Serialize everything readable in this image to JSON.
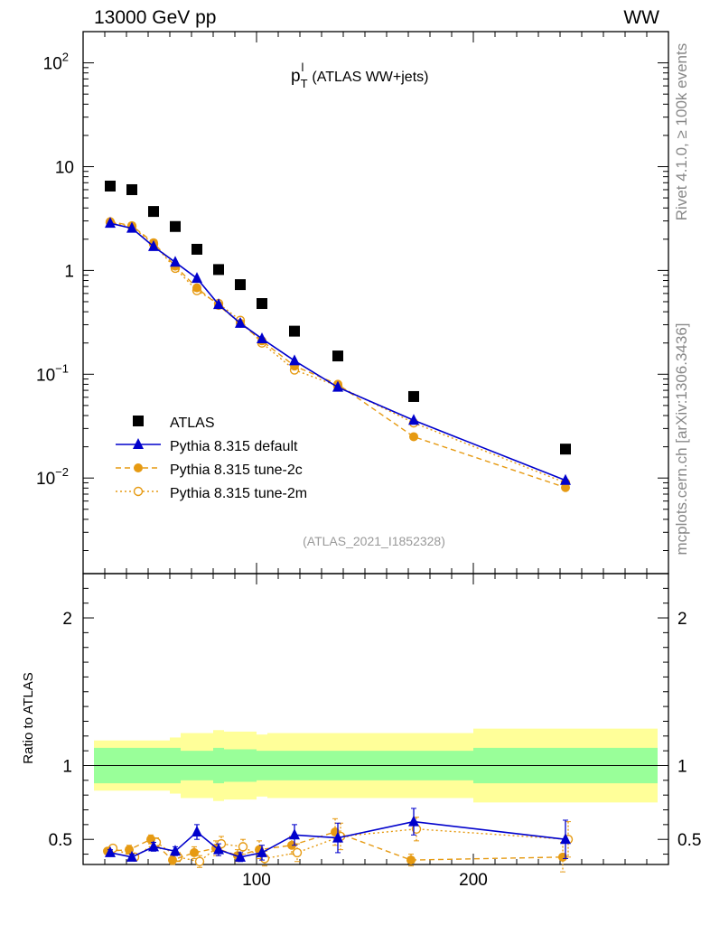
{
  "header": {
    "left": "13000 GeV pp",
    "right": "WW"
  },
  "side": {
    "rivet": "Rivet 4.1.0, ≥ 100k events",
    "mcplots": "mcplots.cern.ch [arXiv:1306.3436]"
  },
  "chart_data": {
    "type": "scatter",
    "title": "p_T^l (ATLAS WW+jets)",
    "title_main": "p",
    "title_sub": "T",
    "title_sup": "l",
    "title_rest": "(ATLAS WW+jets)",
    "analysis": "(ATLAS_2021_I1852328)",
    "xlim": [
      20,
      290
    ],
    "ylim": [
      0.0012,
      200
    ],
    "yscale": "log",
    "yticks": [
      {
        "base": "10",
        "exp": "2",
        "value": 100
      },
      {
        "base": "10",
        "exp": "",
        "value": 10
      },
      {
        "base": "1",
        "exp": "",
        "value": 1
      },
      {
        "base": "10",
        "exp": "−1",
        "value": 0.1
      },
      {
        "base": "10",
        "exp": "−2",
        "value": 0.01
      }
    ],
    "x": [
      32.5,
      42.5,
      52.5,
      62.5,
      72.5,
      82.5,
      92.5,
      102.5,
      117.5,
      137.5,
      172.5,
      242.5
    ],
    "xerr": [
      [
        25,
        40
      ],
      [
        40,
        45
      ],
      [
        45,
        60
      ],
      [
        60,
        65
      ],
      [
        65,
        80
      ],
      [
        80,
        85
      ],
      [
        85,
        100
      ],
      [
        100,
        105
      ],
      [
        105,
        130
      ],
      [
        130,
        145
      ],
      [
        145,
        200
      ],
      [
        200,
        285
      ]
    ],
    "series": [
      {
        "name": "ATLAS",
        "color": "#000000",
        "marker": "square",
        "values": [
          6.5,
          6.0,
          3.7,
          2.65,
          1.6,
          1.02,
          0.73,
          0.48,
          0.26,
          0.15,
          0.061,
          0.019
        ]
      },
      {
        "name": "Pythia 8.315 default",
        "color": "#0000cc",
        "marker": "triangle",
        "line": "solid",
        "values": [
          2.85,
          2.55,
          1.7,
          1.2,
          0.84,
          0.47,
          0.31,
          0.22,
          0.135,
          0.075,
          0.036,
          0.0095
        ]
      },
      {
        "name": "Pythia 8.315 tune-2c",
        "color": "#e69a12",
        "marker": "circle",
        "line": "dashed",
        "values": [
          2.95,
          2.7,
          1.85,
          1.1,
          0.68,
          0.46,
          0.31,
          0.21,
          0.12,
          0.08,
          0.025,
          0.0081
        ]
      },
      {
        "name": "Pythia 8.315 tune-2m",
        "color": "#e69a12",
        "marker": "open-circle",
        "line": "dotted",
        "values": [
          2.9,
          2.65,
          1.8,
          1.05,
          0.64,
          0.48,
          0.33,
          0.2,
          0.11,
          0.077,
          0.034,
          0.009
        ]
      }
    ],
    "ratio": {
      "ylabel": "Ratio to ATLAS",
      "ylim": [
        0.33,
        2.3
      ],
      "yticks": [
        "0.5",
        "1",
        "2"
      ],
      "yticks_values": [
        0.5,
        1,
        2
      ],
      "xticks": [
        "100",
        "200"
      ],
      "xticks_values": [
        100,
        200
      ],
      "band_green": [
        0.12,
        0.12,
        0.12,
        0.12,
        0.1,
        0.12,
        0.11,
        0.1,
        0.1,
        0.1,
        0.1,
        0.12
      ],
      "band_yellow": [
        0.17,
        0.17,
        0.17,
        0.19,
        0.22,
        0.24,
        0.23,
        0.21,
        0.22,
        0.22,
        0.22,
        0.25
      ],
      "default": {
        "values": [
          0.41,
          0.38,
          0.45,
          0.42,
          0.55,
          0.43,
          0.38,
          0.41,
          0.53,
          0.51,
          0.62,
          0.5
        ],
        "errors": [
          0.02,
          0.02,
          0.03,
          0.03,
          0.05,
          0.04,
          0.03,
          0.05,
          0.07,
          0.1,
          0.09,
          0.13
        ]
      },
      "tune2c": {
        "values": [
          0.42,
          0.43,
          0.5,
          0.36,
          0.41,
          0.44,
          0.39,
          0.43,
          0.46,
          0.55,
          0.36,
          0.38
        ],
        "errors": [
          0.02,
          0.03,
          0.03,
          0.03,
          0.04,
          0.05,
          0.04,
          0.06,
          0.06,
          0.09,
          0.04,
          0.1
        ]
      },
      "tune2m": {
        "values": [
          0.44,
          0.38,
          0.48,
          0.38,
          0.35,
          0.47,
          0.45,
          0.37,
          0.41,
          0.52,
          0.57,
          0.5
        ],
        "errors": [
          0.02,
          0.02,
          0.03,
          0.03,
          0.04,
          0.05,
          0.05,
          0.05,
          0.06,
          0.09,
          0.08,
          0.12
        ]
      }
    }
  }
}
